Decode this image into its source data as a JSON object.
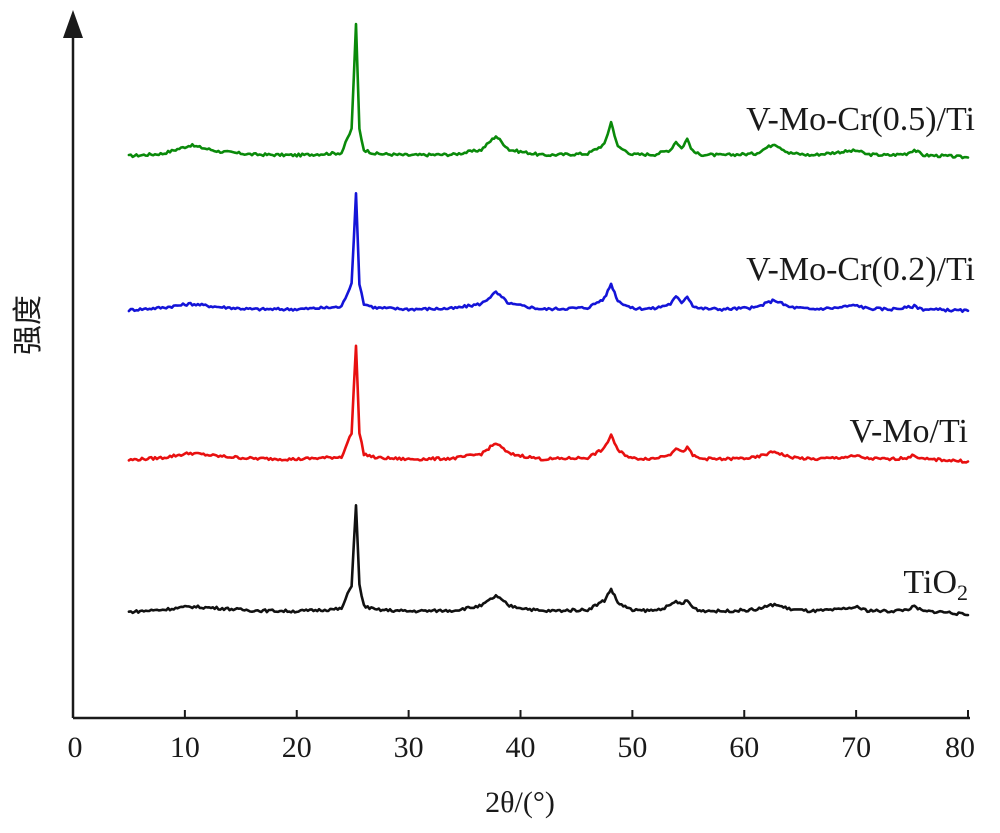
{
  "chart_data": {
    "type": "line",
    "xlabel": "2θ/(°)",
    "ylabel": "强度",
    "xlim": [
      0,
      80
    ],
    "xticks": [
      0,
      10,
      20,
      30,
      40,
      50,
      60,
      70,
      80
    ],
    "grid": false,
    "series": [
      {
        "name": "V-Mo-Cr(0.5)/Ti",
        "color": "#0a8a0a",
        "x": [
          5,
          8,
          10.5,
          13,
          16,
          20,
          24,
          24.9,
          25.3,
          25.6,
          26,
          27,
          30,
          34,
          36.5,
          37.8,
          39,
          42,
          46,
          47.5,
          48.1,
          48.7,
          50,
          52,
          53.4,
          53.9,
          54.4,
          54.9,
          55.4,
          56,
          58,
          61,
          62.7,
          64,
          66,
          68.4,
          69.2,
          70.1,
          71,
          73,
          74.5,
          75.2,
          76,
          78,
          80
        ],
        "y": [
          0,
          0.3,
          1.4,
          0.6,
          0.2,
          0.1,
          0.4,
          3.5,
          17,
          3.5,
          0.8,
          0.3,
          0.1,
          0.2,
          0.8,
          2.6,
          0.8,
          0.1,
          0.3,
          1.5,
          4.4,
          1.2,
          0.2,
          0.2,
          0.8,
          1.9,
          1,
          2.2,
          0.6,
          0.2,
          0.1,
          0.3,
          1.6,
          0.4,
          0.1,
          0.5,
          0.6,
          0.7,
          0.2,
          0.1,
          0.3,
          0.8,
          0.1,
          0,
          -0.2
        ],
        "label_text": "V-Mo-Cr(0.5)/Ti"
      },
      {
        "name": "V-Mo-Cr(0.2)/Ti",
        "color": "#1414d8",
        "x": [
          5,
          8,
          10.5,
          13,
          16,
          20,
          24,
          24.9,
          25.3,
          25.6,
          26,
          27,
          30,
          34,
          36.5,
          37.8,
          39,
          42,
          46,
          47.5,
          48.1,
          48.7,
          50,
          52,
          53.4,
          53.9,
          54.4,
          54.9,
          55.4,
          56,
          58,
          61,
          62.7,
          64,
          66,
          68.4,
          69.2,
          70.1,
          71,
          73,
          74.5,
          75.2,
          76,
          78,
          80
        ],
        "y": [
          0,
          0.3,
          0.8,
          0.4,
          0.1,
          0.1,
          0.4,
          3.5,
          15,
          3.5,
          0.8,
          0.3,
          0.1,
          0.2,
          0.8,
          2.3,
          0.8,
          0.1,
          0.3,
          1.5,
          3.4,
          1.2,
          0.2,
          0.2,
          0.8,
          1.7,
          1,
          1.8,
          0.6,
          0.2,
          0.1,
          0.3,
          1.3,
          0.4,
          0.1,
          0.3,
          0.5,
          0.6,
          0.2,
          0.1,
          0.3,
          0.5,
          0.1,
          0,
          -0.1
        ],
        "label_text": "V-Mo-Cr(0.2)/Ti"
      },
      {
        "name": "V-Mo/Ti",
        "color": "#e81010",
        "x": [
          5,
          8,
          10.5,
          13,
          16,
          20,
          24,
          24.9,
          25.3,
          25.6,
          26,
          27,
          30,
          34,
          36.5,
          37.8,
          39,
          42,
          46,
          47.5,
          48.1,
          48.7,
          50,
          52,
          53.4,
          53.9,
          54.4,
          54.9,
          55.4,
          56,
          58,
          61,
          62.7,
          64,
          66,
          68.4,
          69.2,
          70.1,
          71,
          73,
          74.5,
          75.2,
          76,
          78,
          80
        ],
        "y": [
          0,
          0.3,
          0.9,
          0.5,
          0.2,
          0.1,
          0.4,
          3.5,
          15,
          3.5,
          0.8,
          0.3,
          0.1,
          0.2,
          0.8,
          2.2,
          0.8,
          0.1,
          0.3,
          1.5,
          3.3,
          1.2,
          0.2,
          0.2,
          0.8,
          1.6,
          1,
          1.6,
          0.6,
          0.2,
          0.1,
          0.3,
          1.1,
          0.4,
          0.1,
          0.3,
          0.4,
          0.5,
          0.2,
          0.1,
          0.3,
          0.6,
          0.1,
          0,
          -0.2
        ],
        "label_text": "V-Mo/Ti"
      },
      {
        "name": "TiO₂",
        "color": "#111111",
        "x": [
          5,
          8,
          10.5,
          13,
          16,
          20,
          24,
          24.9,
          25.3,
          25.6,
          26,
          27,
          30,
          34,
          36.5,
          37.8,
          39,
          42,
          46,
          47.5,
          48.1,
          48.7,
          50,
          52,
          53.4,
          53.9,
          54.4,
          54.9,
          55.4,
          56,
          58,
          61,
          62.7,
          64,
          66,
          68.4,
          69.2,
          70.1,
          71,
          73,
          74.5,
          75.2,
          76,
          78,
          80
        ],
        "y": [
          0,
          0.3,
          0.7,
          0.5,
          0.2,
          0.1,
          0.4,
          3.5,
          14,
          3.5,
          0.8,
          0.3,
          0.1,
          0.2,
          0.8,
          2.1,
          0.8,
          0.1,
          0.3,
          1.5,
          3.0,
          1.2,
          0.2,
          0.2,
          0.8,
          1.4,
          1,
          1.5,
          0.6,
          0.2,
          0.1,
          0.3,
          1.0,
          0.4,
          0.1,
          0.3,
          0.5,
          0.6,
          0.2,
          0.1,
          0.3,
          0.7,
          0.1,
          0,
          -0.4
        ],
        "label_text": "TiO",
        "label_sub": "2"
      }
    ]
  }
}
